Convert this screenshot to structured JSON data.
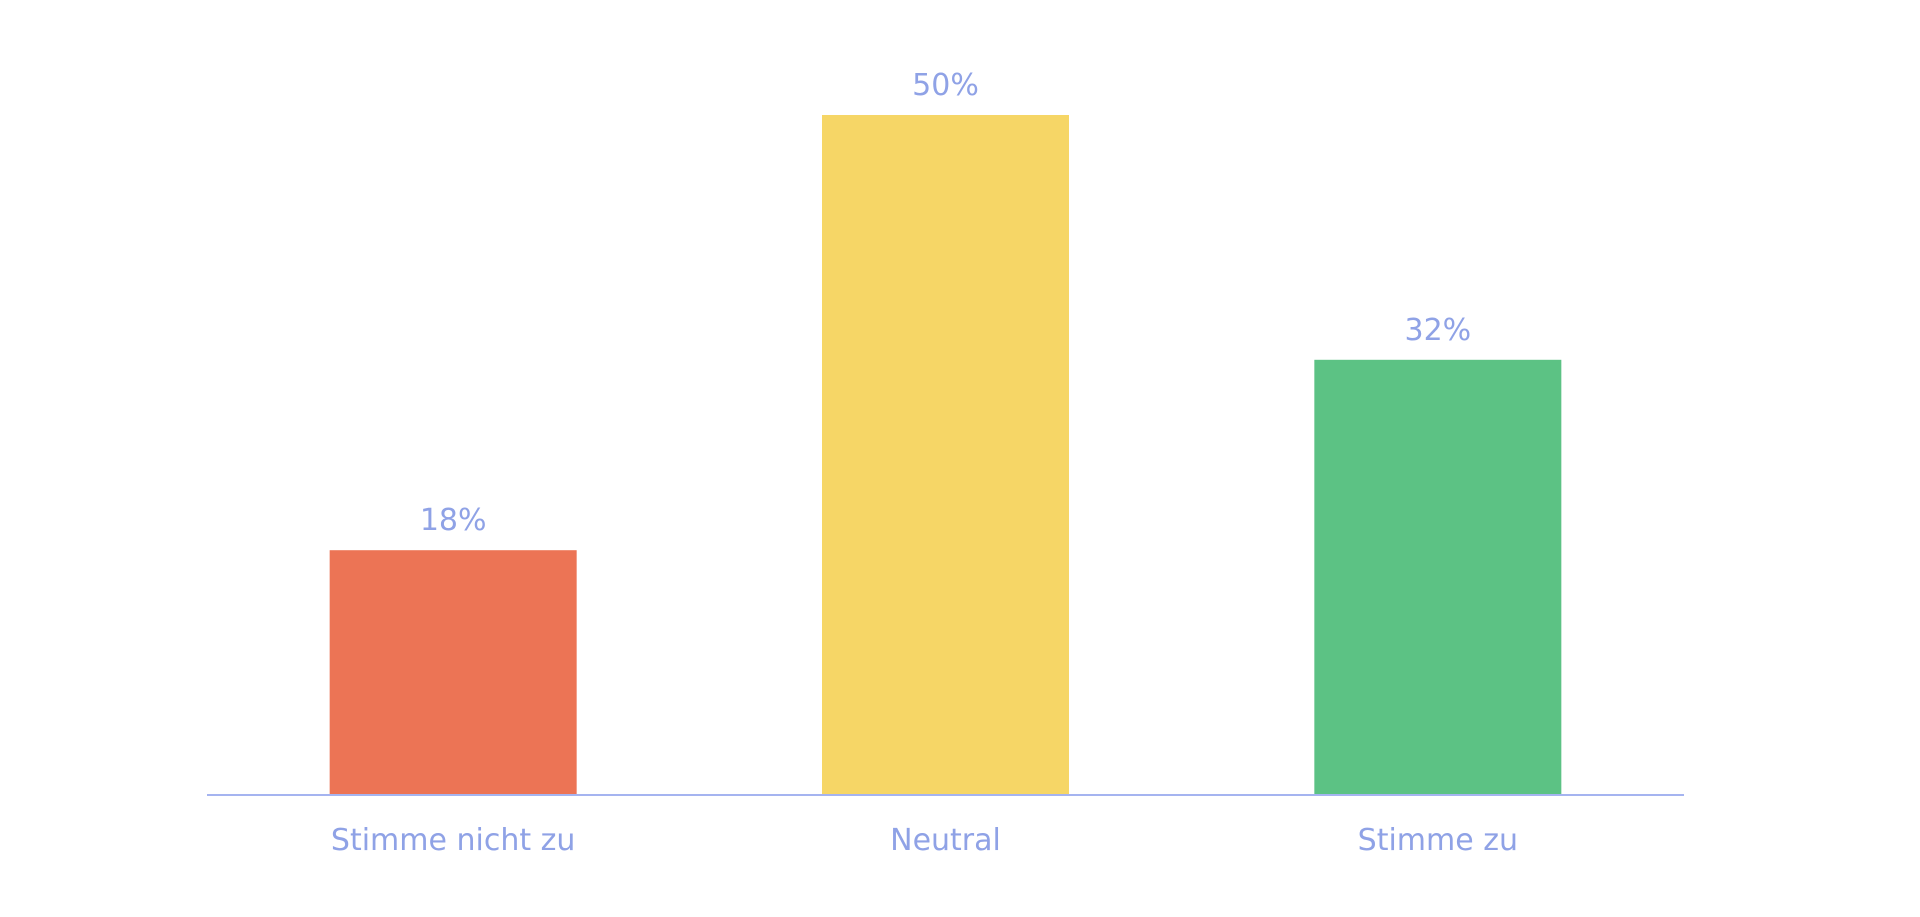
{
  "chart_data": {
    "type": "bar",
    "categories": [
      "Stimme nicht zu",
      "Neutral",
      "Stimme zu"
    ],
    "values": [
      18,
      50,
      32
    ],
    "value_labels": [
      "18%",
      "50%",
      "32%"
    ],
    "colors": [
      "#ec7455",
      "#f6d666",
      "#5cc284"
    ]
  }
}
